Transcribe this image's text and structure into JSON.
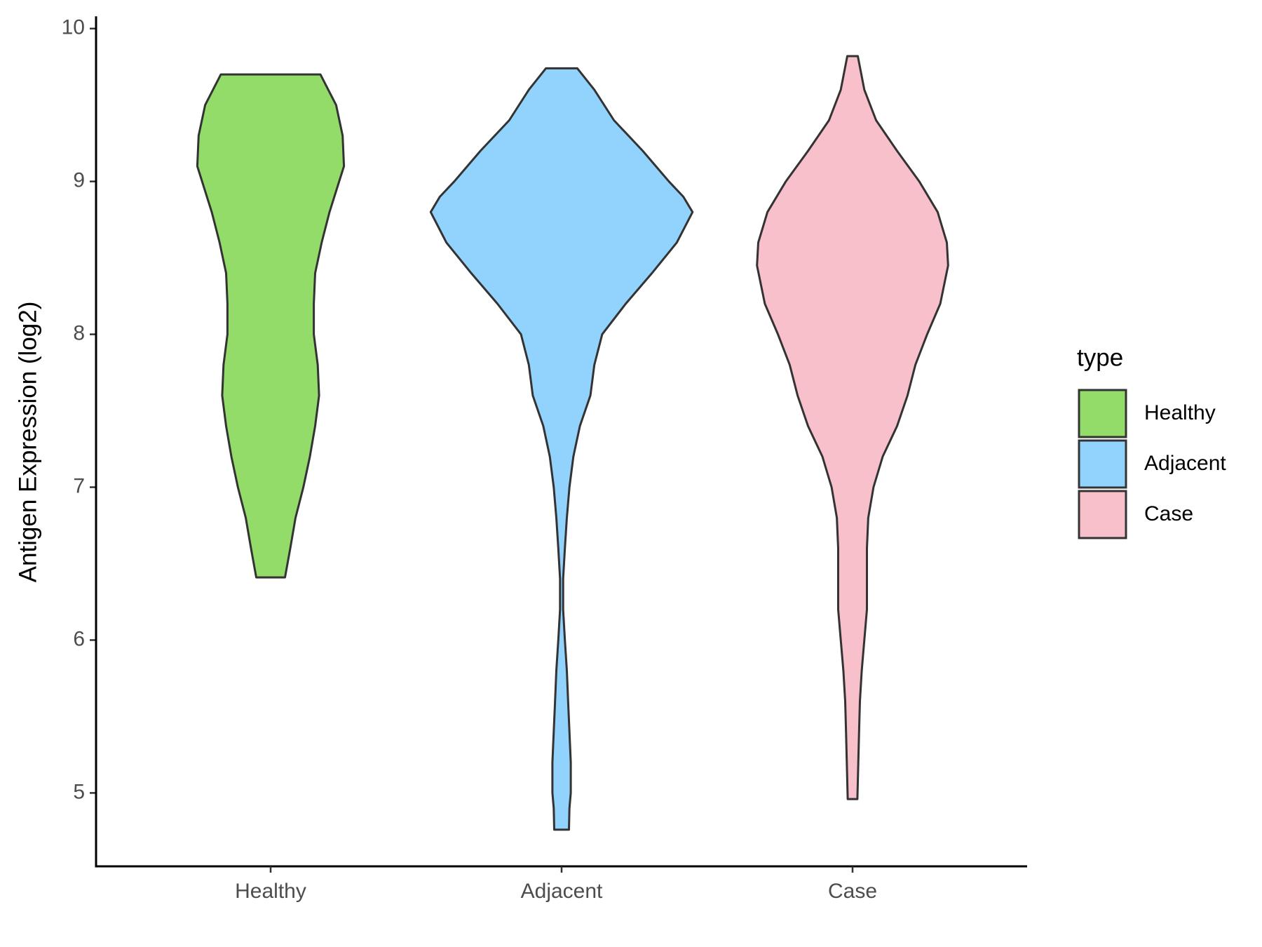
{
  "chart_data": {
    "type": "violin",
    "y_label": "Antigen Expression (log2)",
    "legend_title": "type",
    "categories": [
      "Healthy",
      "Adjacent",
      "Case"
    ],
    "ylim": [
      4.52,
      10.08
    ],
    "yticks": [
      5,
      6,
      7,
      8,
      9,
      10
    ],
    "series": [
      {
        "name": "Healthy",
        "color": "#93dc6a",
        "y": [
          9.7,
          9.5,
          9.3,
          9.1,
          8.8,
          8.6,
          8.4,
          8.2,
          8.0,
          7.8,
          7.6,
          7.4,
          7.2,
          7.0,
          6.8,
          6.6,
          6.41
        ],
        "width": [
          0.38,
          0.5,
          0.55,
          0.56,
          0.45,
          0.39,
          0.34,
          0.33,
          0.33,
          0.36,
          0.37,
          0.34,
          0.3,
          0.25,
          0.19,
          0.15,
          0.11
        ]
      },
      {
        "name": "Adjacent",
        "color": "#92d3fd",
        "y": [
          9.74,
          9.6,
          9.4,
          9.2,
          9.0,
          8.9,
          8.8,
          8.6,
          8.4,
          8.2,
          8.0,
          7.8,
          7.6,
          7.4,
          7.2,
          7.0,
          6.8,
          6.6,
          6.4,
          6.2,
          6.0,
          5.8,
          5.6,
          5.4,
          5.2,
          5.0,
          4.9,
          4.76
        ],
        "width": [
          0.12,
          0.25,
          0.4,
          0.62,
          0.82,
          0.93,
          1.0,
          0.88,
          0.69,
          0.49,
          0.31,
          0.25,
          0.22,
          0.14,
          0.09,
          0.06,
          0.04,
          0.025,
          0.012,
          0.012,
          0.025,
          0.04,
          0.05,
          0.06,
          0.07,
          0.07,
          0.06,
          0.056
        ]
      },
      {
        "name": "Case",
        "color": "#f7c0cb",
        "y": [
          9.82,
          9.6,
          9.4,
          9.2,
          9.0,
          8.8,
          8.6,
          8.45,
          8.2,
          8.0,
          7.8,
          7.6,
          7.4,
          7.2,
          7.0,
          6.8,
          6.6,
          6.4,
          6.2,
          6.0,
          5.8,
          5.6,
          5.4,
          5.2,
          4.96
        ],
        "width": [
          0.04,
          0.09,
          0.18,
          0.34,
          0.51,
          0.65,
          0.72,
          0.73,
          0.67,
          0.57,
          0.48,
          0.42,
          0.34,
          0.23,
          0.16,
          0.12,
          0.11,
          0.11,
          0.11,
          0.09,
          0.07,
          0.056,
          0.05,
          0.044,
          0.037
        ]
      }
    ]
  }
}
